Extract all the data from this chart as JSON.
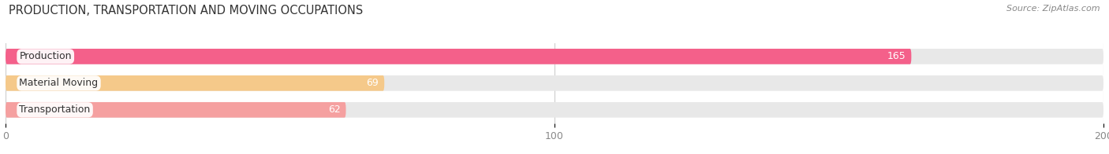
{
  "title": "PRODUCTION, TRANSPORTATION AND MOVING OCCUPATIONS",
  "source": "Source: ZipAtlas.com",
  "categories": [
    "Production",
    "Material Moving",
    "Transportation"
  ],
  "values": [
    165,
    69,
    62
  ],
  "bar_colors": [
    "#f4608a",
    "#f5c98a",
    "#f5a0a0"
  ],
  "bar_bg_color": "#e8e8e8",
  "bg_color": "#ffffff",
  "xlim": [
    0,
    200
  ],
  "xticks": [
    0,
    100,
    200
  ],
  "bar_height": 0.58,
  "figsize": [
    14.06,
    1.96
  ],
  "dpi": 100,
  "label_color_inside": "#ffffff",
  "label_color_outside": "#888888",
  "title_fontsize": 10.5,
  "source_fontsize": 8,
  "tick_fontsize": 9,
  "bar_label_fontsize": 9,
  "category_fontsize": 9
}
